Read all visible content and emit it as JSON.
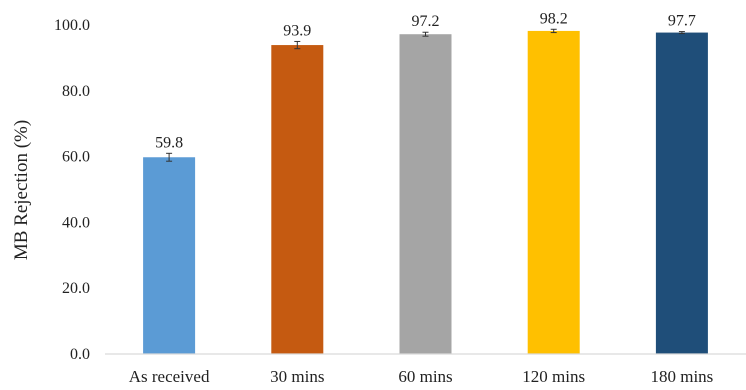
{
  "chart_data": {
    "type": "bar",
    "title": "",
    "xlabel": "",
    "ylabel": "MB Rejection (%)",
    "categories": [
      "As received",
      "30 mins",
      "60 mins",
      "120 mins",
      "180 mins"
    ],
    "values": [
      59.8,
      93.9,
      97.2,
      98.2,
      97.7
    ],
    "value_labels": [
      "59.8",
      "93.9",
      "97.2",
      "98.2",
      "97.7"
    ],
    "error": [
      1.2,
      1.1,
      0.6,
      0.5,
      0.3
    ],
    "colors": [
      "#5b9bd5",
      "#c55a11",
      "#a5a5a5",
      "#ffc000",
      "#1f4e79"
    ],
    "ylim": [
      0,
      100
    ],
    "yticks": [
      0,
      20,
      40,
      60,
      80,
      100
    ],
    "ytick_labels": [
      "0.0",
      "20.0",
      "40.0",
      "60.0",
      "80.0",
      "100.0"
    ],
    "grid": false,
    "legend": "none"
  }
}
